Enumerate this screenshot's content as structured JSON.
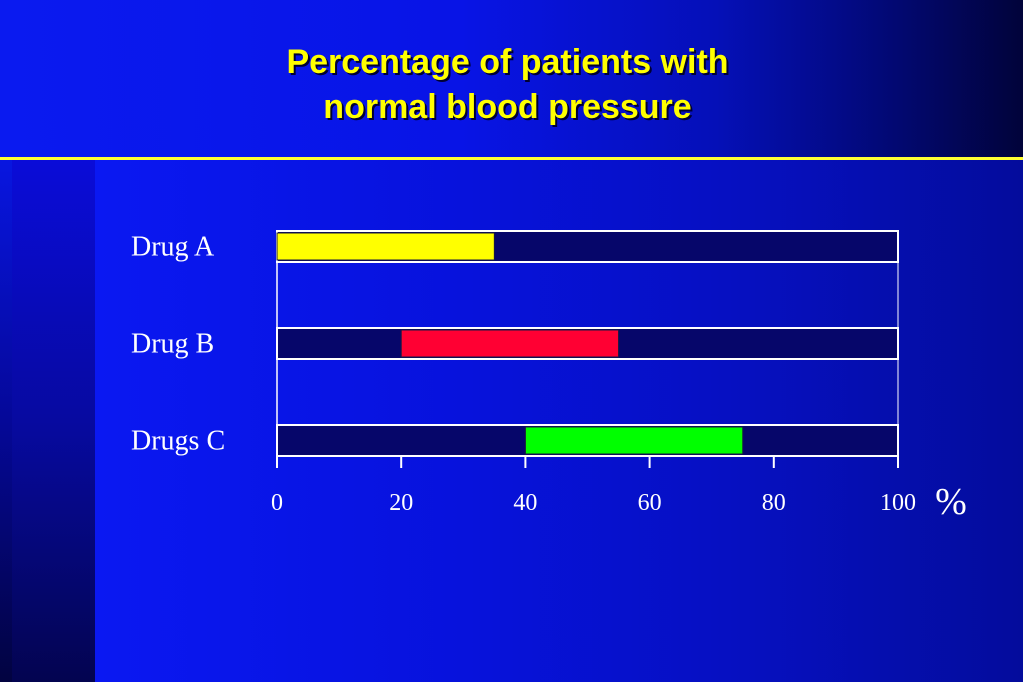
{
  "title_lines": [
    "Percentage of patients with",
    "normal blood pressure"
  ],
  "chart_data": {
    "type": "bar",
    "orientation": "horizontal",
    "title": "Percentage of patients with normal blood pressure",
    "categories": [
      "Drug A",
      "Drug B",
      "Drugs C"
    ],
    "ranges": [
      {
        "start": 0,
        "end": 35
      },
      {
        "start": 20,
        "end": 55
      },
      {
        "start": 40,
        "end": 75
      }
    ],
    "colors": [
      "#ffff00",
      "#ff0033",
      "#00ff00"
    ],
    "xlim": [
      0,
      100
    ],
    "xticks": [
      0,
      20,
      40,
      60,
      80,
      100
    ],
    "xlabel": "%",
    "grid": false
  },
  "colors": {
    "track": "#06066a",
    "track_border": "#ffffff",
    "accent_line": "#ffff33"
  }
}
